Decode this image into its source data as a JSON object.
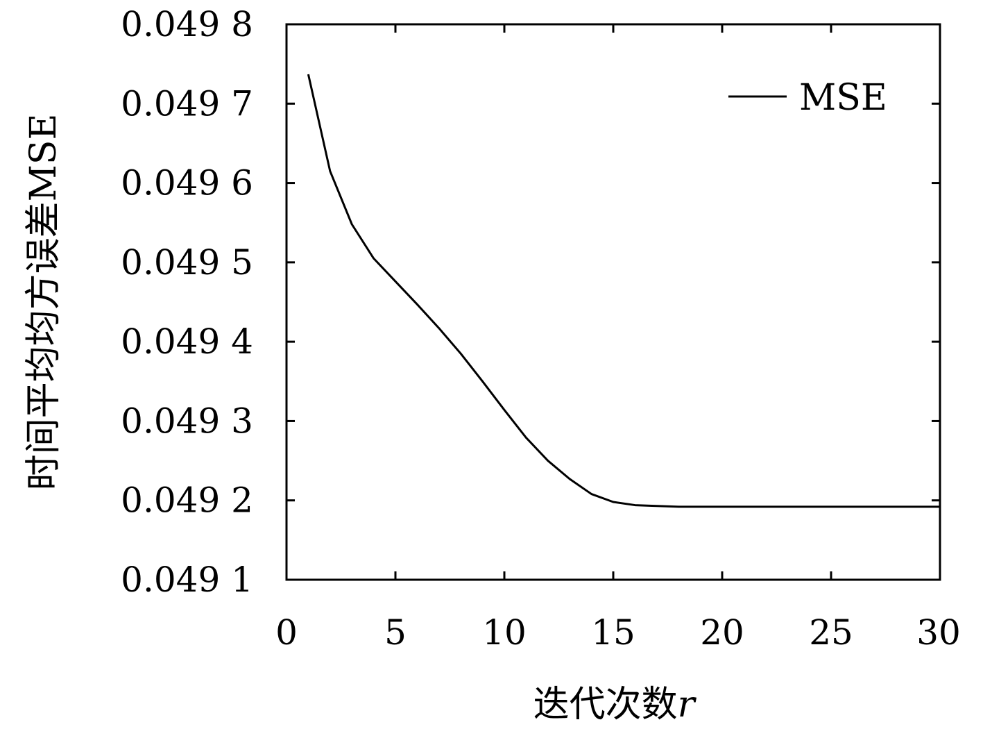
{
  "chart_data": {
    "type": "line",
    "title": "",
    "xlabel_main": "迭代次数",
    "xlabel_var": "r",
    "ylabel": "时间平均均方误差MSE",
    "xlim": [
      0,
      30
    ],
    "ylim": [
      0.0491,
      0.0498
    ],
    "x_ticks": [
      {
        "value": 0,
        "label": "0"
      },
      {
        "value": 5,
        "label": "5"
      },
      {
        "value": 10,
        "label": "10"
      },
      {
        "value": 15,
        "label": "15"
      },
      {
        "value": 20,
        "label": "20"
      },
      {
        "value": 25,
        "label": "25"
      },
      {
        "value": 30,
        "label": "30"
      }
    ],
    "y_ticks": [
      {
        "value": 0.0491,
        "label": "0.049 1"
      },
      {
        "value": 0.0492,
        "label": "0.049 2"
      },
      {
        "value": 0.0493,
        "label": "0.049 3"
      },
      {
        "value": 0.0494,
        "label": "0.049 4"
      },
      {
        "value": 0.0495,
        "label": "0.049 5"
      },
      {
        "value": 0.0496,
        "label": "0.049 6"
      },
      {
        "value": 0.0497,
        "label": "0.049 7"
      },
      {
        "value": 0.0498,
        "label": "0.049 8"
      }
    ],
    "grid": false,
    "legend_position": "top-right",
    "series": [
      {
        "name": "MSE",
        "color": "#000000",
        "x": [
          1,
          2,
          3,
          4,
          5,
          6,
          7,
          8,
          9,
          10,
          11,
          12,
          13,
          14,
          15,
          16,
          17,
          18,
          19,
          20,
          21,
          22,
          23,
          24,
          25,
          26,
          27,
          28,
          29,
          30
        ],
        "y": [
          0.049737,
          0.049615,
          0.049548,
          0.049505,
          0.049476,
          0.049447,
          0.049417,
          0.049385,
          0.04935,
          0.049314,
          0.049279,
          0.04925,
          0.049227,
          0.049208,
          0.049198,
          0.049194,
          0.049193,
          0.049192,
          0.049192,
          0.049192,
          0.049192,
          0.049192,
          0.049192,
          0.049192,
          0.049192,
          0.049192,
          0.049192,
          0.049192,
          0.049192,
          0.049192
        ]
      }
    ]
  }
}
